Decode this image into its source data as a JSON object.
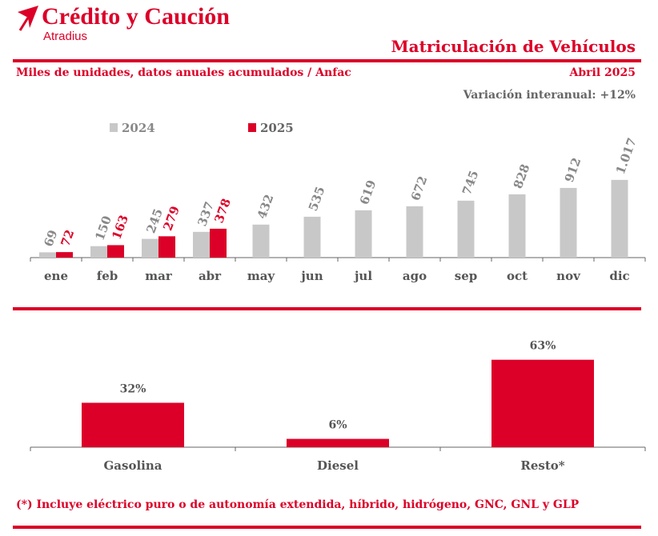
{
  "brand": {
    "name": "Crédito y Caución",
    "sub": "Atradius",
    "color": "#dc0028"
  },
  "header": {
    "title": "Matriculación de Vehículos",
    "subtitle": "Miles de unidades, datos anuales acumulados / Anfac",
    "date": "Abril 2025",
    "variation": "Variación interanual: +12%"
  },
  "footnote": "(*) Incluye eléctrico puro o de autonomía extendida, híbrido, hidrógeno, GNC, GNL y GLP",
  "colors": {
    "s2024": "#c8c8c8",
    "s2025": "#dc0028",
    "label2024": "#888888",
    "axis": "#666666"
  },
  "chart_data": [
    {
      "type": "bar",
      "categories": [
        "ene",
        "feb",
        "mar",
        "abr",
        "may",
        "jun",
        "jul",
        "ago",
        "sep",
        "oct",
        "nov",
        "dic"
      ],
      "series": [
        {
          "name": "2024",
          "values": [
            69,
            150,
            245,
            337,
            432,
            535,
            619,
            672,
            745,
            828,
            912,
            1017
          ],
          "labels": [
            "69",
            "150",
            "245",
            "337",
            "432",
            "535",
            "619",
            "672",
            "745",
            "828",
            "912",
            "1.017"
          ]
        },
        {
          "name": "2025",
          "values": [
            72,
            163,
            279,
            378,
            null,
            null,
            null,
            null,
            null,
            null,
            null,
            null
          ],
          "labels": [
            "72",
            "163",
            "279",
            "378"
          ]
        }
      ],
      "legend": "top-left",
      "grid": false
    },
    {
      "type": "bar",
      "categories": [
        "Gasolina",
        "Diesel",
        "Resto*"
      ],
      "values": [
        32,
        6,
        63
      ],
      "labels": [
        "32%",
        "6%",
        "63%"
      ],
      "unit": "%"
    }
  ]
}
